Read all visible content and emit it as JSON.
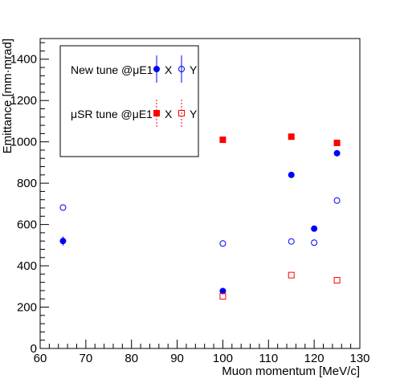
{
  "chart_data": {
    "type": "scatter",
    "title": "",
    "xlabel": "Muon momentum [MeV/c]",
    "ylabel": "Emittance [mm·mrad]",
    "xlim": [
      60,
      130
    ],
    "ylim": [
      0,
      1500
    ],
    "x_ticks": [
      60,
      70,
      80,
      90,
      100,
      110,
      120,
      130
    ],
    "y_ticks": [
      0,
      200,
      400,
      600,
      800,
      1000,
      1200,
      1400
    ],
    "grid": false,
    "legend": {
      "placement": "top-left",
      "groups": [
        {
          "label": "New tune @μE1",
          "x_label": "X",
          "y_label": "Y",
          "color": "#0000ff"
        },
        {
          "label": "μSR tune @μE1",
          "x_label": "X",
          "y_label": "Y",
          "color": "#ff0000"
        }
      ]
    },
    "series": [
      {
        "name": "New tune @μE1 X",
        "marker": "filled-circle",
        "color": "#0000ff",
        "points": [
          {
            "x": 65,
            "y": 520,
            "err": 22
          },
          {
            "x": 100,
            "y": 278,
            "err": 0
          },
          {
            "x": 115,
            "y": 840,
            "err": 0
          },
          {
            "x": 120,
            "y": 580,
            "err": 0
          },
          {
            "x": 125,
            "y": 945,
            "err": 0
          }
        ]
      },
      {
        "name": "New tune @μE1 Y",
        "marker": "open-circle",
        "color": "#0000ff",
        "points": [
          {
            "x": 65,
            "y": 682,
            "err": 0
          },
          {
            "x": 100,
            "y": 508,
            "err": 0
          },
          {
            "x": 115,
            "y": 518,
            "err": 0
          },
          {
            "x": 120,
            "y": 512,
            "err": 0
          },
          {
            "x": 125,
            "y": 716,
            "err": 0
          }
        ]
      },
      {
        "name": "μSR tune @μE1 X",
        "marker": "filled-square",
        "color": "#ff0000",
        "points": [
          {
            "x": 100,
            "y": 1010,
            "err": 0
          },
          {
            "x": 115,
            "y": 1025,
            "err": 0
          },
          {
            "x": 125,
            "y": 995,
            "err": 0
          }
        ]
      },
      {
        "name": "μSR tune @μE1 Y",
        "marker": "open-square",
        "color": "#ff0000",
        "points": [
          {
            "x": 100,
            "y": 252,
            "err": 0
          },
          {
            "x": 115,
            "y": 355,
            "err": 0
          },
          {
            "x": 125,
            "y": 330,
            "err": 0
          }
        ]
      }
    ]
  }
}
